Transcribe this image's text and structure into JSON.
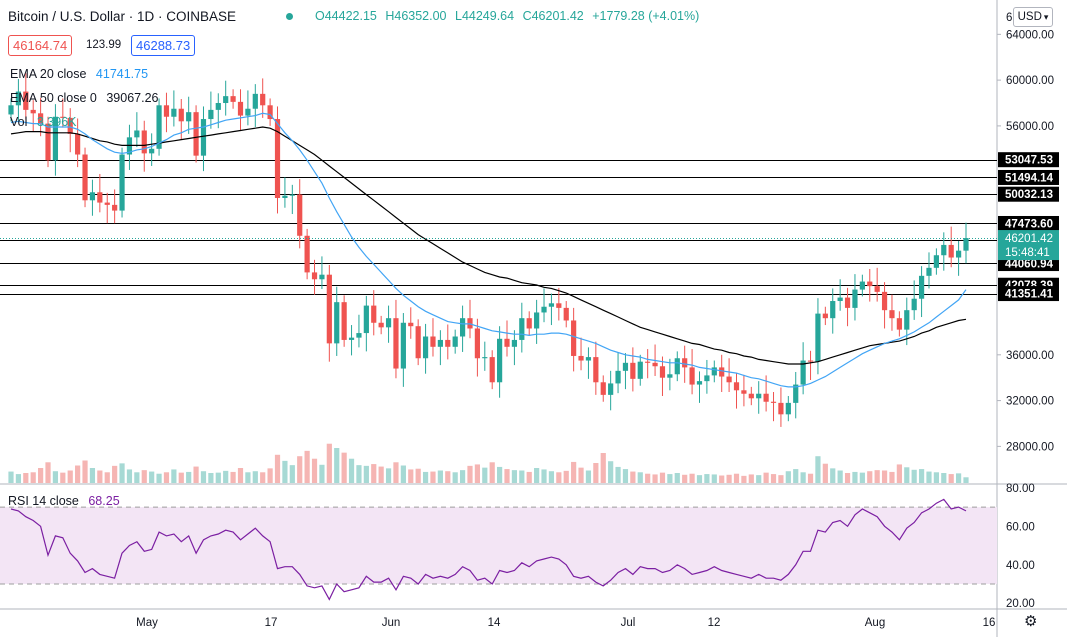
{
  "header": {
    "symbol": "Bitcoin / U.S. Dollar · 1D · COINBASE",
    "ohlc": {
      "open": "O44422.15",
      "high": "H46352.00",
      "low": "L44249.64",
      "close": "C46201.42",
      "change": "+1779.28 (+4.01%)"
    },
    "bid": "46164.74",
    "spread": "123.99",
    "ask": "46288.73",
    "currency": "USD"
  },
  "indicators": {
    "ema20": {
      "label": "EMA 20 close",
      "value": "41741.75",
      "color": "#2196f3"
    },
    "ema50": {
      "label": "EMA 50 close 0",
      "value": "39067.26",
      "color": "#000000"
    },
    "vol": {
      "label": "Vol",
      "value": "3.396K"
    },
    "rsi": {
      "label": "RSI 14 close",
      "value": "68.25",
      "color": "#7b1fa2"
    }
  },
  "colors": {
    "up": "#26a69a",
    "down": "#ef5350",
    "ema20": "#42a5f5",
    "ema50": "#000000",
    "rsi": "#7b1fa2",
    "rsi_band": "#f3e5f5"
  },
  "chart_data": {
    "type": "candlestick",
    "x_ticks": [
      "May",
      "17",
      "Jun",
      "14",
      "Jul",
      "12",
      "Aug",
      "16"
    ],
    "price_ticks": [
      "64000.00",
      "60000.00",
      "56000.00",
      "36000.00",
      "32000.00",
      "28000.00"
    ],
    "price_range": [
      24800,
      67000
    ],
    "horizontal_levels": [
      {
        "value": 53047.53,
        "label": "53047.53"
      },
      {
        "value": 51494.14,
        "label": "51494.14"
      },
      {
        "value": 50032.13,
        "label": "50032.13"
      },
      {
        "value": 47473.6,
        "label": "47473.60"
      },
      {
        "value": 46012.33,
        "label": "46012.33"
      },
      {
        "value": 44060.94,
        "label": "44060.94"
      },
      {
        "value": 42078.39,
        "label": "42078.39"
      },
      {
        "value": 41351.41,
        "label": "41351.41"
      }
    ],
    "last_price": {
      "value": 46201.42,
      "label": "46201.42",
      "countdown": "15:48:41"
    },
    "price_axis_top_label": "6",
    "rsi_ticks": [
      "80.00",
      "60.00",
      "40.00",
      "20.00"
    ],
    "rsi_range": [
      17,
      82
    ],
    "rsi_band": [
      30,
      70
    ],
    "closes": [
      57800,
      59000,
      57400,
      57100,
      56200,
      53000,
      56800,
      56700,
      55300,
      53500,
      49500,
      50200,
      49300,
      49100,
      48600,
      53500,
      55000,
      55600,
      53600,
      54000,
      57800,
      56800,
      57500,
      56400,
      57200,
      53400,
      56600,
      57400,
      58000,
      58600,
      58100,
      56900,
      57500,
      58800,
      57800,
      56600,
      49700,
      49900,
      50000,
      46400,
      43200,
      42600,
      43000,
      37000,
      40600,
      37300,
      37500,
      37900,
      40300,
      38800,
      38400,
      39200,
      34800,
      38800,
      38500,
      35700,
      37600,
      36700,
      37300,
      36700,
      37600,
      39200,
      38300,
      35700,
      35800,
      33600,
      37400,
      36700,
      37300,
      39200,
      38300,
      39700,
      40200,
      40500,
      40100,
      39000,
      35900,
      35500,
      35800,
      33600,
      32500,
      33500,
      34600,
      35300,
      33900,
      35400,
      35300,
      35000,
      34000,
      34300,
      35700,
      34900,
      33400,
      33700,
      34200,
      34900,
      34100,
      33600,
      32900,
      32600,
      32200,
      32600,
      31900,
      31800,
      30800,
      31800,
      33400,
      35500,
      35400,
      39600,
      39200,
      40700,
      41000,
      40100,
      41700,
      42400,
      42000,
      41500,
      39900,
      39200,
      38200,
      39900,
      40900,
      42900,
      43600,
      44700,
      45600,
      44500,
      45100,
      46200
    ],
    "ema20": [
      56300,
      56400,
      56300,
      56200,
      56200,
      55900,
      55900,
      55900,
      55900,
      55700,
      55300,
      54800,
      54400,
      54000,
      53700,
      53600,
      53700,
      53900,
      54000,
      54200,
      54500,
      54800,
      55200,
      55400,
      55700,
      55800,
      55900,
      56100,
      56300,
      56500,
      56600,
      56700,
      56800,
      56900,
      57100,
      57000,
      56200,
      55400,
      54700,
      53900,
      53000,
      52000,
      51000,
      49700,
      48500,
      47400,
      46300,
      45400,
      44600,
      43900,
      43200,
      42500,
      41800,
      41200,
      40700,
      40200,
      39800,
      39500,
      39200,
      38900,
      38800,
      38700,
      38700,
      38500,
      38300,
      38100,
      38000,
      37900,
      37800,
      37800,
      37700,
      37800,
      37800,
      37900,
      37900,
      37800,
      37600,
      37400,
      37200,
      37000,
      36700,
      36400,
      36200,
      36000,
      35900,
      35800,
      35600,
      35500,
      35400,
      35300,
      35300,
      35200,
      35100,
      34900,
      34800,
      34700,
      34600,
      34500,
      34400,
      34200,
      34000,
      33900,
      33700,
      33500,
      33300,
      33200,
      33200,
      33300,
      33500,
      33800,
      34100,
      34500,
      34900,
      35300,
      35700,
      36100,
      36400,
      36700,
      37000,
      37200,
      37400,
      37700,
      38000,
      38400,
      38800,
      39300,
      39800,
      40300,
      40800,
      41700
    ],
    "ema50": [
      55300,
      55400,
      55500,
      55500,
      55500,
      55400,
      55400,
      55400,
      55400,
      55300,
      55100,
      54900,
      54700,
      54600,
      54400,
      54300,
      54300,
      54300,
      54300,
      54400,
      54500,
      54600,
      54700,
      54800,
      54900,
      55000,
      55100,
      55200,
      55300,
      55400,
      55500,
      55600,
      55700,
      55800,
      55900,
      55800,
      55500,
      55100,
      54700,
      54300,
      53900,
      53500,
      53000,
      52500,
      52000,
      51500,
      51000,
      50500,
      50000,
      49500,
      49000,
      48500,
      48000,
      47500,
      47000,
      46500,
      46100,
      45700,
      45300,
      44900,
      44500,
      44100,
      43800,
      43500,
      43200,
      43000,
      42800,
      42700,
      42500,
      42300,
      42200,
      42100,
      41900,
      41800,
      41600,
      41400,
      41100,
      40800,
      40500,
      40200,
      39900,
      39600,
      39300,
      39000,
      38700,
      38400,
      38200,
      38000,
      37800,
      37600,
      37400,
      37200,
      37000,
      36900,
      36700,
      36500,
      36400,
      36200,
      36100,
      35900,
      35800,
      35600,
      35500,
      35400,
      35300,
      35200,
      35200,
      35200,
      35300,
      35400,
      35600,
      35800,
      36000,
      36200,
      36400,
      36600,
      36800,
      36900,
      37000,
      37100,
      37200,
      37400,
      37600,
      37900,
      38100,
      38400,
      38600,
      38800,
      39000,
      39100
    ],
    "volume": [
      3.2,
      2.5,
      2.8,
      3.0,
      4.2,
      5.8,
      3.3,
      2.9,
      3.5,
      4.9,
      6.3,
      4.2,
      3.5,
      3.0,
      4.8,
      5.5,
      3.8,
      3.0,
      3.6,
      3.2,
      2.6,
      3.0,
      3.8,
      2.9,
      3.1,
      4.6,
      3.3,
      2.8,
      2.9,
      3.4,
      3.1,
      4.2,
      3.0,
      3.3,
      3.0,
      4.1,
      7.9,
      6.2,
      5.0,
      7.5,
      9.0,
      6.8,
      5.1,
      11.0,
      9.8,
      8.5,
      6.8,
      5.0,
      4.8,
      5.3,
      4.6,
      4.1,
      5.8,
      4.9,
      3.8,
      4.0,
      3.1,
      3.2,
      3.5,
      3.3,
      3.0,
      3.6,
      4.8,
      5.2,
      4.3,
      5.8,
      4.5,
      3.9,
      3.6,
      3.5,
      3.1,
      4.2,
      3.8,
      3.3,
      3.0,
      3.4,
      5.9,
      4.3,
      3.5,
      5.6,
      8.4,
      6.1,
      4.5,
      3.9,
      3.2,
      3.0,
      2.6,
      2.4,
      2.9,
      2.5,
      2.8,
      2.3,
      2.6,
      2.2,
      2.5,
      2.4,
      2.1,
      2.3,
      2.6,
      2.0,
      2.4,
      2.2,
      2.9,
      2.5,
      2.2,
      3.3,
      3.9,
      3.0,
      2.6,
      7.5,
      5.4,
      4.1,
      3.5,
      2.8,
      3.1,
      2.9,
      3.3,
      3.6,
      3.5,
      3.1,
      5.2,
      4.4,
      3.7,
      3.9,
      3.2,
      3.0,
      2.8,
      2.5,
      2.7,
      1.6
    ],
    "rsi": [
      69,
      68,
      65,
      63,
      60,
      45,
      55,
      54,
      46,
      42,
      36,
      38,
      35,
      34,
      33,
      46,
      50,
      52,
      47,
      48,
      57,
      55,
      56,
      52,
      55,
      46,
      53,
      55,
      56,
      58,
      57,
      53,
      56,
      59,
      55,
      52,
      38,
      39,
      39,
      35,
      29,
      28,
      29,
      22,
      30,
      26,
      27,
      28,
      34,
      31,
      31,
      33,
      27,
      34,
      33,
      30,
      35,
      33,
      34,
      33,
      35,
      39,
      37,
      32,
      33,
      30,
      37,
      36,
      37,
      41,
      39,
      42,
      43,
      44,
      43,
      40,
      34,
      33,
      34,
      31,
      29,
      32,
      36,
      38,
      35,
      39,
      38,
      38,
      36,
      37,
      40,
      38,
      35,
      36,
      37,
      39,
      37,
      36,
      35,
      34,
      33,
      35,
      33,
      33,
      32,
      35,
      40,
      47,
      47,
      58,
      57,
      62,
      63,
      60,
      66,
      69,
      67,
      65,
      60,
      57,
      53,
      59,
      62,
      67,
      69,
      72,
      74,
      69,
      70,
      68
    ]
  }
}
